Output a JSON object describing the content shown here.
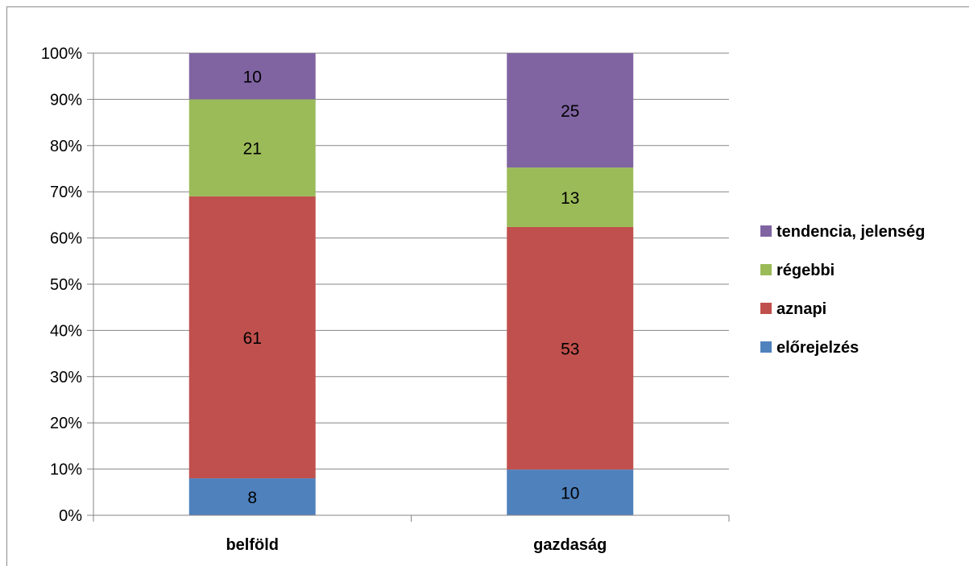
{
  "chart_data": {
    "type": "bar",
    "stacked": "percent",
    "categories": [
      "belföld",
      "gazdaság"
    ],
    "series": [
      {
        "name": "előrejelzés",
        "values": [
          8,
          10
        ],
        "color": "#4F81BD"
      },
      {
        "name": "aznapi",
        "values": [
          61,
          53
        ],
        "color": "#C0504D"
      },
      {
        "name": "régebbi",
        "values": [
          21,
          13
        ],
        "color": "#9BBB59"
      },
      {
        "name": "tendencia, jelenség",
        "values": [
          10,
          25
        ],
        "color": "#8064A2"
      }
    ],
    "y_ticks": [
      "0%",
      "10%",
      "20%",
      "30%",
      "40%",
      "50%",
      "60%",
      "70%",
      "80%",
      "90%",
      "100%"
    ],
    "ylim": [
      0,
      100
    ],
    "grid": true,
    "legend_position": "right"
  }
}
